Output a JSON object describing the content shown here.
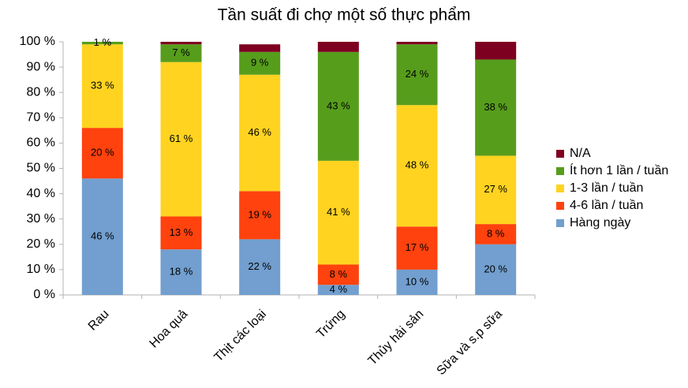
{
  "chart_data": {
    "type": "stacked_bar",
    "title": "Tần suất đi chợ một số thực phẩm",
    "categories": [
      "Rau",
      "Hoa quả",
      "Thịt các loại",
      "Trứng",
      "Thủy hải sản",
      "Sữa và s.p sữa"
    ],
    "series": [
      {
        "name": "Hàng ngày",
        "color": "#729fcf",
        "values": [
          46,
          18,
          22,
          4,
          10,
          20
        ],
        "value_labels": [
          "46 %",
          "18 %",
          "22 %",
          "4 %",
          "10 %",
          "20 %"
        ]
      },
      {
        "name": "4-6 lần / tuần",
        "color": "#ff420e",
        "values": [
          20,
          13,
          19,
          8,
          17,
          8
        ],
        "value_labels": [
          "20 %",
          "13 %",
          "19 %",
          "8 %",
          "17 %",
          "8 %"
        ]
      },
      {
        "name": "1-3 lần / tuần",
        "color": "#ffd320",
        "values": [
          33,
          61,
          46,
          41,
          48,
          27
        ],
        "value_labels": [
          "33 %",
          "61 %",
          "46 %",
          "41 %",
          "48 %",
          "27 %"
        ]
      },
      {
        "name": "Ít hơn 1 lần / tuần",
        "color": "#579d1c",
        "values": [
          1,
          7,
          9,
          43,
          24,
          38
        ],
        "value_labels": [
          "1 %",
          "7 %",
          "9 %",
          "43 %",
          "24 %",
          "38 %"
        ]
      },
      {
        "name": "N/A",
        "color": "#7e0021",
        "values": [
          0,
          1,
          3,
          4,
          1,
          7
        ],
        "value_labels": [
          null,
          null,
          null,
          null,
          null,
          null
        ]
      }
    ],
    "ylim": [
      0,
      100
    ],
    "yticks": [
      {
        "value": 0,
        "label": "0 %"
      },
      {
        "value": 10,
        "label": "10 %"
      },
      {
        "value": 20,
        "label": "20 %"
      },
      {
        "value": 30,
        "label": "30 %"
      },
      {
        "value": 40,
        "label": "40 %"
      },
      {
        "value": 50,
        "label": "50 %"
      },
      {
        "value": 60,
        "label": "60 %"
      },
      {
        "value": 70,
        "label": "70 %"
      },
      {
        "value": 80,
        "label": "80 %"
      },
      {
        "value": 90,
        "label": "90 %"
      },
      {
        "value": 100,
        "label": "100 %"
      }
    ],
    "grid": false,
    "legend": "right"
  }
}
